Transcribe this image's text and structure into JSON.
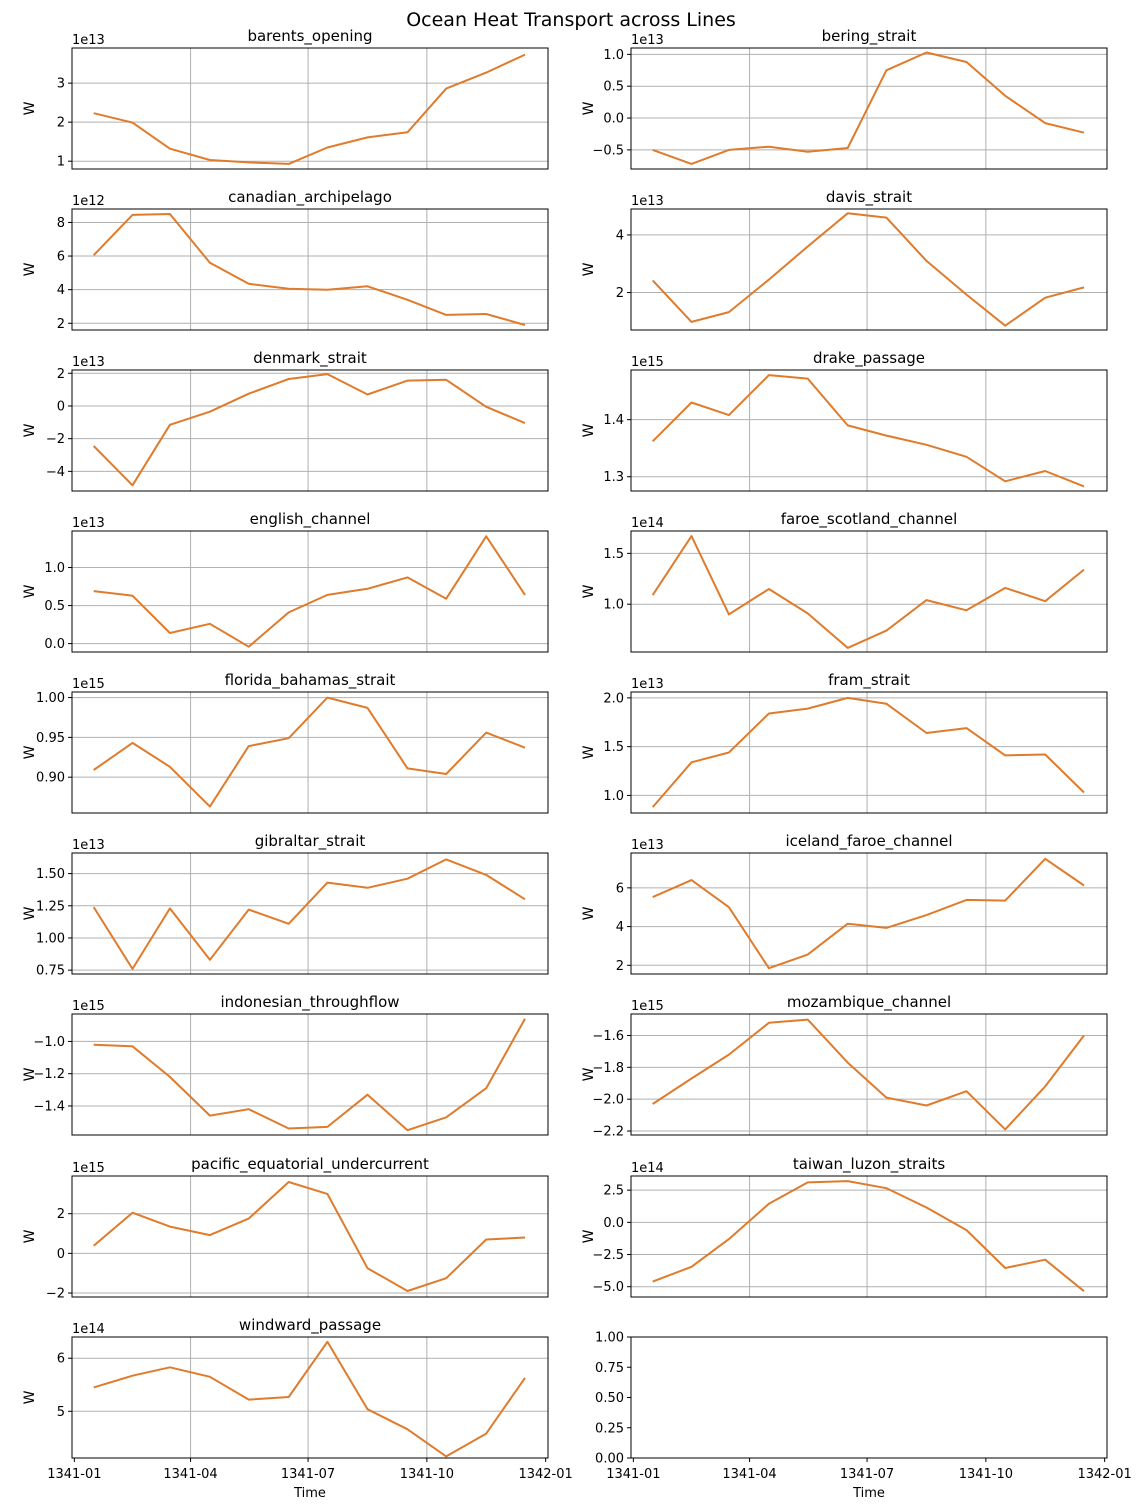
{
  "figure": {
    "title": "Ocean Heat Transport across Lines"
  },
  "colors": {
    "line": "#e07b2b",
    "grid": "#b0b0b0",
    "axis": "#000000"
  },
  "chart_data": [
    {
      "type": "line",
      "title": "barents_opening",
      "ylabel": "W",
      "scale_label": "1e13",
      "scale": 10000000000000.0,
      "x": [
        "1341-01-16",
        "1341-02-15",
        "1341-03-16",
        "1341-04-16",
        "1341-05-16",
        "1341-06-16",
        "1341-07-16",
        "1341-08-16",
        "1341-09-16",
        "1341-10-16",
        "1341-11-16",
        "1341-12-16"
      ],
      "values": [
        2.23,
        1.99,
        1.32,
        1.03,
        0.97,
        0.93,
        1.35,
        1.61,
        1.74,
        2.86,
        3.27,
        3.73
      ],
      "ylim": [
        0.8,
        3.9
      ],
      "yticks": [
        1,
        2,
        3
      ],
      "xlabel": ""
    },
    {
      "type": "line",
      "title": "bering_strait",
      "ylabel": "W",
      "scale_label": "1e13",
      "scale": 10000000000000.0,
      "x": [
        "1341-01-16",
        "1341-02-15",
        "1341-03-16",
        "1341-04-16",
        "1341-05-16",
        "1341-06-16",
        "1341-07-16",
        "1341-08-16",
        "1341-09-16",
        "1341-10-16",
        "1341-11-16",
        "1341-12-16"
      ],
      "values": [
        -0.5,
        -0.72,
        -0.5,
        -0.45,
        -0.53,
        -0.47,
        0.75,
        1.03,
        0.88,
        0.35,
        -0.08,
        -0.23
      ],
      "ylim": [
        -0.8,
        1.1
      ],
      "yticks": [
        -0.5,
        0.0,
        0.5,
        1.0
      ],
      "xlabel": ""
    },
    {
      "type": "line",
      "title": "canadian_archipelago",
      "ylabel": "W",
      "scale_label": "1e12",
      "scale": 1000000000000.0,
      "x": [
        "1341-01-16",
        "1341-02-15",
        "1341-03-16",
        "1341-04-16",
        "1341-05-16",
        "1341-06-16",
        "1341-07-16",
        "1341-08-16",
        "1341-09-16",
        "1341-10-16",
        "1341-11-16",
        "1341-12-16"
      ],
      "values": [
        6.05,
        8.45,
        8.5,
        5.6,
        4.35,
        4.05,
        4.0,
        4.2,
        3.4,
        2.5,
        2.55,
        1.9
      ],
      "ylim": [
        1.6,
        8.8
      ],
      "yticks": [
        2,
        4,
        6,
        8
      ],
      "xlabel": ""
    },
    {
      "type": "line",
      "title": "davis_strait",
      "ylabel": "W",
      "scale_label": "1e13",
      "scale": 10000000000000.0,
      "x": [
        "1341-01-16",
        "1341-02-15",
        "1341-03-16",
        "1341-04-16",
        "1341-05-16",
        "1341-06-16",
        "1341-07-16",
        "1341-08-16",
        "1341-09-16",
        "1341-10-16",
        "1341-11-16",
        "1341-12-16"
      ],
      "values": [
        2.42,
        0.98,
        1.32,
        2.45,
        3.6,
        4.75,
        4.6,
        3.1,
        1.93,
        0.85,
        1.82,
        2.18
      ],
      "ylim": [
        0.7,
        4.9
      ],
      "yticks": [
        2,
        4
      ],
      "xlabel": ""
    },
    {
      "type": "line",
      "title": "denmark_strait",
      "ylabel": "W",
      "scale_label": "1e13",
      "scale": 10000000000000.0,
      "x": [
        "1341-01-16",
        "1341-02-15",
        "1341-03-16",
        "1341-04-16",
        "1341-05-16",
        "1341-06-16",
        "1341-07-16",
        "1341-08-16",
        "1341-09-16",
        "1341-10-16",
        "1341-11-16",
        "1341-12-16"
      ],
      "values": [
        -2.45,
        -4.85,
        -1.15,
        -0.35,
        0.75,
        1.65,
        1.95,
        0.7,
        1.55,
        1.6,
        -0.05,
        -1.05
      ],
      "ylim": [
        -5.2,
        2.2
      ],
      "yticks": [
        -4,
        -2,
        0,
        2
      ],
      "xlabel": ""
    },
    {
      "type": "line",
      "title": "drake_passage",
      "ylabel": "W",
      "scale_label": "1e15",
      "scale": 1000000000000000.0,
      "x": [
        "1341-01-16",
        "1341-02-15",
        "1341-03-16",
        "1341-04-16",
        "1341-05-16",
        "1341-06-16",
        "1341-07-16",
        "1341-08-16",
        "1341-09-16",
        "1341-10-16",
        "1341-11-16",
        "1341-12-16"
      ],
      "values": [
        1.362,
        1.43,
        1.408,
        1.478,
        1.472,
        1.39,
        1.372,
        1.356,
        1.335,
        1.292,
        1.31,
        1.283
      ],
      "ylim": [
        1.275,
        1.487
      ],
      "yticks": [
        1.3,
        1.4
      ],
      "xlabel": ""
    },
    {
      "type": "line",
      "title": "english_channel",
      "ylabel": "W",
      "scale_label": "1e13",
      "scale": 10000000000000.0,
      "x": [
        "1341-01-16",
        "1341-02-15",
        "1341-03-16",
        "1341-04-16",
        "1341-05-16",
        "1341-06-16",
        "1341-07-16",
        "1341-08-16",
        "1341-09-16",
        "1341-10-16",
        "1341-11-16",
        "1341-12-16"
      ],
      "values": [
        0.69,
        0.63,
        0.14,
        0.26,
        -0.04,
        0.41,
        0.64,
        0.72,
        0.87,
        0.59,
        1.41,
        0.64
      ],
      "ylim": [
        -0.11,
        1.48
      ],
      "yticks": [
        0.0,
        0.5,
        1.0
      ],
      "xlabel": ""
    },
    {
      "type": "line",
      "title": "faroe_scotland_channel",
      "ylabel": "W",
      "scale_label": "1e14",
      "scale": 100000000000000.0,
      "x": [
        "1341-01-16",
        "1341-02-15",
        "1341-03-16",
        "1341-04-16",
        "1341-05-16",
        "1341-06-16",
        "1341-07-16",
        "1341-08-16",
        "1341-09-16",
        "1341-10-16",
        "1341-11-16",
        "1341-12-16"
      ],
      "values": [
        1.09,
        1.67,
        0.9,
        1.15,
        0.91,
        0.57,
        0.74,
        1.04,
        0.94,
        1.16,
        1.03,
        1.34
      ],
      "ylim": [
        0.53,
        1.72
      ],
      "yticks": [
        1.0,
        1.5
      ],
      "xlabel": ""
    },
    {
      "type": "line",
      "title": "florida_bahamas_strait",
      "ylabel": "W",
      "scale_label": "1e15",
      "scale": 1000000000000000.0,
      "x": [
        "1341-01-16",
        "1341-02-15",
        "1341-03-16",
        "1341-04-16",
        "1341-05-16",
        "1341-06-16",
        "1341-07-16",
        "1341-08-16",
        "1341-09-16",
        "1341-10-16",
        "1341-11-16",
        "1341-12-16"
      ],
      "values": [
        0.909,
        0.943,
        0.913,
        0.863,
        0.939,
        0.949,
        1.0,
        0.987,
        0.911,
        0.904,
        0.956,
        0.937
      ],
      "ylim": [
        0.855,
        1.007
      ],
      "yticks": [
        0.9,
        0.95,
        1.0
      ],
      "xlabel": ""
    },
    {
      "type": "line",
      "title": "fram_strait",
      "ylabel": "W",
      "scale_label": "1e13",
      "scale": 10000000000000.0,
      "x": [
        "1341-01-16",
        "1341-02-15",
        "1341-03-16",
        "1341-04-16",
        "1341-05-16",
        "1341-06-16",
        "1341-07-16",
        "1341-08-16",
        "1341-09-16",
        "1341-10-16",
        "1341-11-16",
        "1341-12-16"
      ],
      "values": [
        0.88,
        1.34,
        1.44,
        1.84,
        1.89,
        2.0,
        1.94,
        1.64,
        1.69,
        1.41,
        1.42,
        1.03
      ],
      "ylim": [
        0.82,
        2.06
      ],
      "yticks": [
        1.0,
        1.5,
        2.0
      ],
      "xlabel": ""
    },
    {
      "type": "line",
      "title": "gibraltar_strait",
      "ylabel": "W",
      "scale_label": "1e13",
      "scale": 10000000000000.0,
      "x": [
        "1341-01-16",
        "1341-02-15",
        "1341-03-16",
        "1341-04-16",
        "1341-05-16",
        "1341-06-16",
        "1341-07-16",
        "1341-08-16",
        "1341-09-16",
        "1341-10-16",
        "1341-11-16",
        "1341-12-16"
      ],
      "values": [
        1.24,
        0.76,
        1.23,
        0.83,
        1.22,
        1.11,
        1.43,
        1.39,
        1.46,
        1.61,
        1.49,
        1.3
      ],
      "ylim": [
        0.72,
        1.66
      ],
      "yticks": [
        0.75,
        1.0,
        1.25,
        1.5
      ],
      "xlabel": ""
    },
    {
      "type": "line",
      "title": "iceland_faroe_channel",
      "ylabel": "W",
      "scale_label": "1e13",
      "scale": 10000000000000.0,
      "x": [
        "1341-01-16",
        "1341-02-15",
        "1341-03-16",
        "1341-04-16",
        "1341-05-16",
        "1341-06-16",
        "1341-07-16",
        "1341-08-16",
        "1341-09-16",
        "1341-10-16",
        "1341-11-16",
        "1341-12-16"
      ],
      "values": [
        5.52,
        6.4,
        5.0,
        1.85,
        2.55,
        4.15,
        3.93,
        4.59,
        5.38,
        5.34,
        7.5,
        6.12
      ],
      "ylim": [
        1.55,
        7.8
      ],
      "yticks": [
        2,
        4,
        6
      ],
      "xlabel": ""
    },
    {
      "type": "line",
      "title": "indonesian_throughflow",
      "ylabel": "W",
      "scale_label": "1e15",
      "scale": 1000000000000000.0,
      "x": [
        "1341-01-16",
        "1341-02-15",
        "1341-03-16",
        "1341-04-16",
        "1341-05-16",
        "1341-06-16",
        "1341-07-16",
        "1341-08-16",
        "1341-09-16",
        "1341-10-16",
        "1341-11-16",
        "1341-12-16"
      ],
      "values": [
        -1.02,
        -1.03,
        -1.22,
        -1.46,
        -1.42,
        -1.54,
        -1.53,
        -1.33,
        -1.55,
        -1.47,
        -1.29,
        -0.86
      ],
      "ylim": [
        -1.58,
        -0.83
      ],
      "yticks": [
        -1.4,
        -1.2,
        -1.0
      ],
      "xlabel": ""
    },
    {
      "type": "line",
      "title": "mozambique_channel",
      "ylabel": "W",
      "scale_label": "1e15",
      "scale": 1000000000000000.0,
      "x": [
        "1341-01-16",
        "1341-02-15",
        "1341-03-16",
        "1341-04-16",
        "1341-05-16",
        "1341-06-16",
        "1341-07-16",
        "1341-08-16",
        "1341-09-16",
        "1341-10-16",
        "1341-11-16",
        "1341-12-16"
      ],
      "values": [
        -2.03,
        -1.87,
        -1.72,
        -1.52,
        -1.5,
        -1.77,
        -1.99,
        -2.04,
        -1.95,
        -2.19,
        -1.92,
        -1.6
      ],
      "ylim": [
        -2.225,
        -1.465
      ],
      "yticks": [
        -2.2,
        -2.0,
        -1.8,
        -1.6
      ],
      "xlabel": ""
    },
    {
      "type": "line",
      "title": "pacific_equatorial_undercurrent",
      "ylabel": "W",
      "scale_label": "1e15",
      "scale": 1000000000000000.0,
      "x": [
        "1341-01-16",
        "1341-02-15",
        "1341-03-16",
        "1341-04-16",
        "1341-05-16",
        "1341-06-16",
        "1341-07-16",
        "1341-08-16",
        "1341-09-16",
        "1341-10-16",
        "1341-11-16",
        "1341-12-16"
      ],
      "values": [
        0.38,
        2.05,
        1.35,
        0.92,
        1.75,
        3.6,
        3.0,
        -0.75,
        -1.9,
        -1.25,
        0.7,
        0.8
      ],
      "ylim": [
        -2.2,
        3.9
      ],
      "yticks": [
        -2,
        0,
        2
      ],
      "xlabel": ""
    },
    {
      "type": "line",
      "title": "taiwan_luzon_straits",
      "ylabel": "W",
      "scale_label": "1e14",
      "scale": 100000000000000.0,
      "x": [
        "1341-01-16",
        "1341-02-15",
        "1341-03-16",
        "1341-04-16",
        "1341-05-16",
        "1341-06-16",
        "1341-07-16",
        "1341-08-16",
        "1341-09-16",
        "1341-10-16",
        "1341-11-16",
        "1341-12-16"
      ],
      "values": [
        -4.6,
        -3.45,
        -1.3,
        1.45,
        3.1,
        3.2,
        2.65,
        1.15,
        -0.6,
        -3.55,
        -2.9,
        -5.35
      ],
      "ylim": [
        -5.8,
        3.6
      ],
      "yticks": [
        -5.0,
        -2.5,
        0.0,
        2.5
      ],
      "xlabel": ""
    },
    {
      "type": "line",
      "title": "windward_passage",
      "ylabel": "W",
      "scale_label": "1e14",
      "scale": 100000000000000.0,
      "x": [
        "1341-01-16",
        "1341-02-15",
        "1341-03-16",
        "1341-04-16",
        "1341-05-16",
        "1341-06-16",
        "1341-07-16",
        "1341-08-16",
        "1341-09-16",
        "1341-10-16",
        "1341-11-16",
        "1341-12-16"
      ],
      "values": [
        5.45,
        5.67,
        5.83,
        5.65,
        5.22,
        5.27,
        6.31,
        5.04,
        4.66,
        4.15,
        4.58,
        5.63
      ],
      "ylim": [
        4.12,
        6.4
      ],
      "yticks": [
        5,
        6
      ],
      "xlabel": "Time"
    },
    {
      "type": "line",
      "title": "",
      "ylabel": "",
      "scale_label": "",
      "scale": 1,
      "x": [],
      "values": [],
      "ylim": [
        0,
        1
      ],
      "yticks": [
        0.0,
        0.25,
        0.5,
        0.75,
        1.0
      ],
      "xlabel": "Time",
      "empty": true
    }
  ],
  "x_axis": {
    "range": [
      "1341-01-01",
      "1342-01-01"
    ],
    "grid_dates": [
      "1341-04-01",
      "1341-07-01",
      "1341-10-01"
    ],
    "tick_dates": [
      "1341-01-01",
      "1341-04-01",
      "1341-07-01",
      "1341-10-01",
      "1342-01-01"
    ],
    "tick_labels": [
      "1341-01",
      "1341-04",
      "1341-07",
      "1341-10",
      "1342-01"
    ]
  }
}
